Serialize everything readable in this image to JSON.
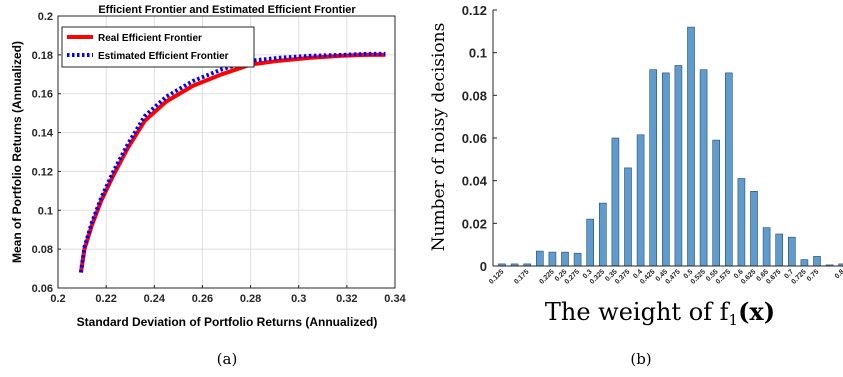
{
  "chart_data": [
    {
      "type": "line",
      "title": "Efficient Frontier and Estimated Efficient Frontier",
      "xlabel": "Standard Deviation of Portfolio Returns (Annualized)",
      "ylabel": "Mean of Portfolio Returns (Annualized)",
      "xlim": [
        0.2,
        0.34
      ],
      "ylim": [
        0.06,
        0.2
      ],
      "xticks": [
        "0.2",
        "0.22",
        "0.24",
        "0.26",
        "0.28",
        "0.3",
        "0.32",
        "0.34"
      ],
      "yticks": [
        "0.06",
        "0.08",
        "0.1",
        "0.12",
        "0.14",
        "0.16",
        "0.18",
        "0.2"
      ],
      "grid": true,
      "legend_position": "top-left",
      "series": [
        {
          "name": "Real Efficient Frontier",
          "color": "#ff0000",
          "style": "solid",
          "x": [
            0.2095,
            0.211,
            0.214,
            0.218,
            0.223,
            0.229,
            0.236,
            0.245,
            0.256,
            0.268,
            0.28,
            0.292,
            0.305,
            0.318,
            0.328,
            0.336
          ],
          "y": [
            0.068,
            0.08,
            0.092,
            0.105,
            0.118,
            0.132,
            0.146,
            0.156,
            0.164,
            0.17,
            0.175,
            0.177,
            0.1785,
            0.1795,
            0.18,
            0.18
          ]
        },
        {
          "name": "Estimated Efficient Frontier",
          "color": "#0000ff",
          "style": "dotted",
          "x": [
            0.2095,
            0.211,
            0.214,
            0.218,
            0.223,
            0.229,
            0.236,
            0.245,
            0.256,
            0.268,
            0.28,
            0.292,
            0.305,
            0.318,
            0.328,
            0.336
          ],
          "y": [
            0.068,
            0.081,
            0.0935,
            0.1065,
            0.12,
            0.134,
            0.1485,
            0.1585,
            0.1665,
            0.1725,
            0.177,
            0.1785,
            0.1795,
            0.18,
            0.1805,
            0.1805
          ]
        }
      ],
      "caption": "(a)"
    },
    {
      "type": "bar",
      "title": "",
      "xlabel": "The weight of f",
      "xlabel_sub": "1",
      "xlabel_arg": "(x)",
      "ylabel": "Number of noisy decisions",
      "ylim": [
        0,
        0.12
      ],
      "yticks": [
        "0",
        "0.02",
        "0.04",
        "0.06",
        "0.08",
        "0.1",
        "0.12"
      ],
      "bar_color": "#5e9cce",
      "categories": [
        "0.125",
        "0.15",
        "0.175",
        "0.2",
        "0.225",
        "0.25",
        "0.275",
        "0.3",
        "0.325",
        "0.35",
        "0.375",
        "0.4",
        "0.425",
        "0.45",
        "0.475",
        "0.5",
        "0.525",
        "0.55",
        "0.575",
        "0.6",
        "0.625",
        "0.65",
        "0.675",
        "0.7",
        "0.725",
        "0.75",
        "0.775",
        "0.8"
      ],
      "tick_labels": [
        "0.125",
        "0.175",
        "0.225",
        "0.25",
        "0.275",
        "0.3",
        "0.325",
        "0.35",
        "0.375",
        "0.4",
        "0.425",
        "0.45",
        "0.475",
        "0.5",
        "0.525",
        "0.55",
        "0.575",
        "0.6",
        "0.625",
        "0.65",
        "0.675",
        "0.7",
        "0.725",
        "0.75",
        "0.8"
      ],
      "values": [
        0.001,
        0.001,
        0.001,
        0.007,
        0.0065,
        0.0065,
        0.006,
        0.022,
        0.0295,
        0.06,
        0.046,
        0.0615,
        0.092,
        0.0905,
        0.094,
        0.112,
        0.092,
        0.059,
        0.0905,
        0.041,
        0.035,
        0.018,
        0.015,
        0.0135,
        0.003,
        0.0045,
        0.0005,
        0.001
      ],
      "caption": "(b)"
    }
  ]
}
